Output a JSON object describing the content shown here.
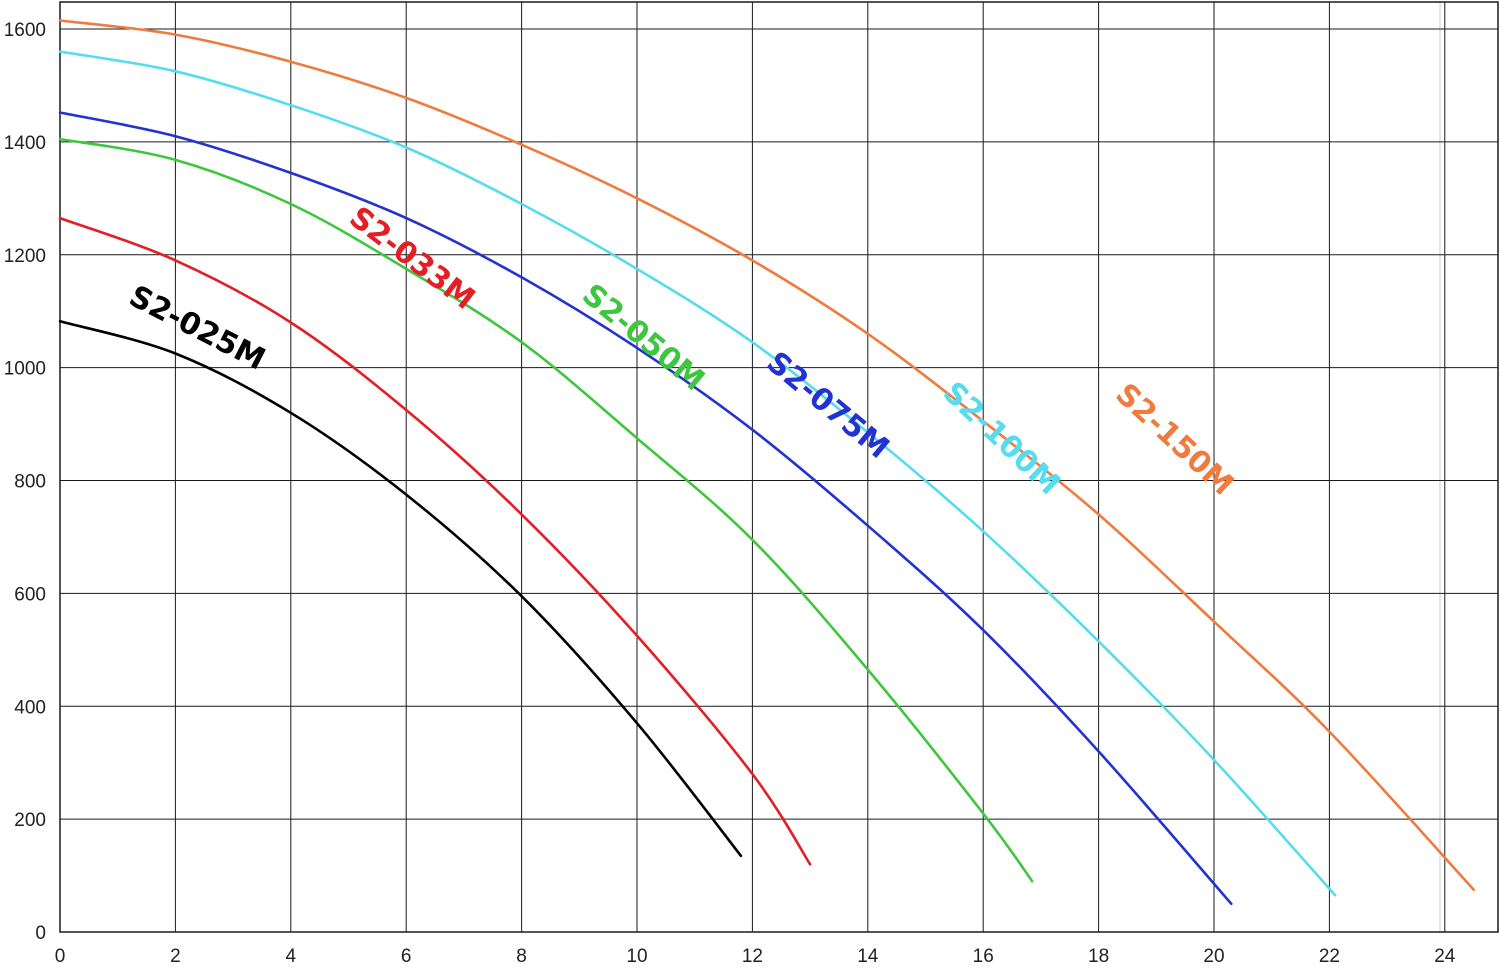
{
  "chart_data": {
    "type": "line",
    "title": "",
    "xlabel": "",
    "ylabel": "",
    "xlim": [
      0,
      25
    ],
    "ylim": [
      0,
      1650
    ],
    "x_ticks": [
      0,
      2,
      4,
      6,
      8,
      10,
      12,
      14,
      16,
      18,
      20,
      22,
      24
    ],
    "y_ticks": [
      0,
      200,
      400,
      600,
      800,
      1000,
      1200,
      1400,
      1600
    ],
    "grid": true,
    "legend": "inline labels on curves",
    "series": [
      {
        "name": "S2-025M",
        "color": "#000000",
        "label_at": [
          2.3,
          1055
        ],
        "x": [
          0,
          2,
          4,
          6,
          8,
          10,
          11.8
        ],
        "y": [
          1082,
          1025,
          920,
          775,
          595,
          370,
          135
        ]
      },
      {
        "name": "S2-033M",
        "color": "#e31e24",
        "label_at": [
          6.0,
          1180
        ],
        "x": [
          0,
          2,
          4,
          6,
          8,
          10,
          12,
          13
        ],
        "y": [
          1265,
          1190,
          1080,
          925,
          740,
          525,
          280,
          120
        ]
      },
      {
        "name": "S2-050M",
        "color": "#3ec73e",
        "label_at": [
          10.0,
          1040
        ],
        "x": [
          0,
          2,
          4,
          6,
          8,
          10,
          12,
          14,
          16,
          16.85
        ],
        "y": [
          1405,
          1368,
          1290,
          1175,
          1045,
          875,
          695,
          465,
          210,
          90
        ]
      },
      {
        "name": "S2-075M",
        "color": "#2233d1",
        "label_at": [
          13.2,
          920
        ],
        "x": [
          0,
          2,
          4,
          6,
          8,
          10,
          12,
          14,
          16,
          18,
          20.3
        ],
        "y": [
          1452,
          1410,
          1345,
          1265,
          1160,
          1035,
          890,
          720,
          535,
          320,
          50
        ]
      },
      {
        "name": "S2-100M",
        "color": "#55dcef",
        "label_at": [
          16.2,
          862
        ],
        "x": [
          0,
          2,
          4,
          6,
          8,
          10,
          12,
          14,
          16,
          18,
          20,
          22.1
        ],
        "y": [
          1560,
          1525,
          1465,
          1390,
          1290,
          1175,
          1045,
          885,
          710,
          515,
          305,
          65
        ]
      },
      {
        "name": "S2-150M",
        "color": "#ef7b3e",
        "label_at": [
          19.2,
          860
        ],
        "x": [
          0,
          2,
          4,
          6,
          8,
          10,
          12,
          14,
          16,
          18,
          20,
          22,
          24.5
        ],
        "y": [
          1615,
          1590,
          1542,
          1478,
          1395,
          1300,
          1190,
          1060,
          905,
          740,
          550,
          355,
          75
        ]
      }
    ]
  }
}
